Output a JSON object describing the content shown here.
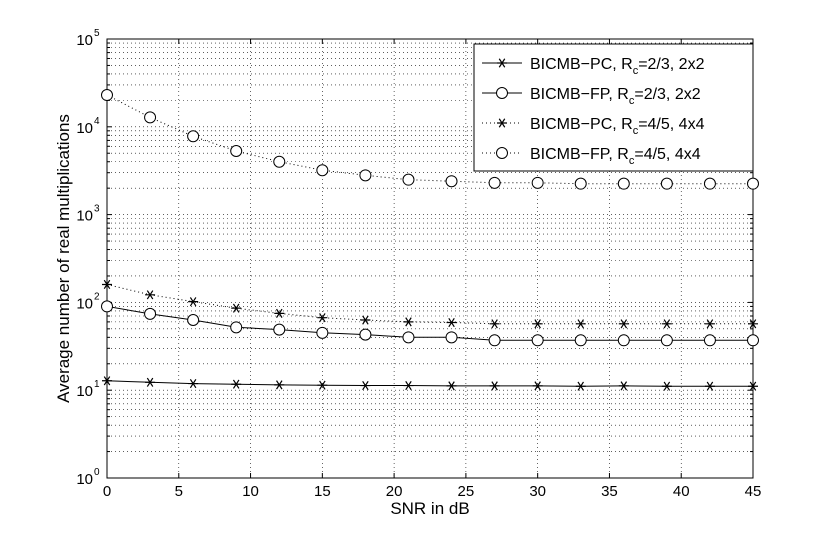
{
  "chart_data": {
    "type": "line",
    "xlabel": "SNR in dB",
    "ylabel": "Average number of real multiplications",
    "xlim": [
      0,
      45
    ],
    "ylim": [
      1,
      100000
    ],
    "yscale": "log",
    "grid": true,
    "legend_position": "top-right",
    "x_ticks": [
      0,
      5,
      10,
      15,
      20,
      25,
      30,
      35,
      40,
      45
    ],
    "y_ticks": [
      {
        "base": "10",
        "exp": "0"
      },
      {
        "base": "10",
        "exp": "1"
      },
      {
        "base": "10",
        "exp": "2"
      },
      {
        "base": "10",
        "exp": "3"
      },
      {
        "base": "10",
        "exp": "4"
      },
      {
        "base": "10",
        "exp": "5"
      }
    ],
    "x": [
      0,
      3,
      6,
      9,
      12,
      15,
      18,
      21,
      24,
      27,
      30,
      33,
      36,
      39,
      42,
      45
    ],
    "series": [
      {
        "name": "BICMB−PC, R",
        "name_sub": "c",
        "name_rest": "=2/3, 2x2",
        "marker": "star",
        "line": "solid",
        "values": [
          12.8,
          12.3,
          11.9,
          11.7,
          11.5,
          11.4,
          11.3,
          11.3,
          11.2,
          11.2,
          11.2,
          11.1,
          11.2,
          11.1,
          11.1,
          11.1
        ]
      },
      {
        "name": "BICMB−FP, R",
        "name_sub": "c",
        "name_rest": "=2/3, 2x2",
        "marker": "circle",
        "line": "solid",
        "values": [
          90,
          74,
          63,
          52,
          49,
          45,
          43,
          40,
          40,
          37,
          37,
          37,
          37,
          37,
          37,
          37
        ]
      },
      {
        "name": "BICMB−PC, R",
        "name_sub": "c",
        "name_rest": "=4/5, 4x4",
        "marker": "star",
        "line": "dotted",
        "values": [
          160,
          122,
          102,
          86,
          75,
          67,
          63,
          60,
          59,
          57,
          57,
          57,
          57,
          57,
          57,
          57
        ]
      },
      {
        "name": "BICMB−FP, R",
        "name_sub": "c",
        "name_rest": "=4/5, 4x4",
        "marker": "circle",
        "line": "dotted",
        "values": [
          23000,
          12800,
          7800,
          5300,
          4000,
          3200,
          2800,
          2500,
          2400,
          2300,
          2300,
          2250,
          2250,
          2250,
          2250,
          2250
        ]
      }
    ]
  }
}
